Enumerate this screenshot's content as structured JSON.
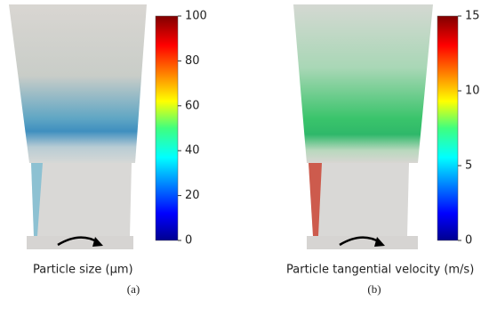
{
  "panels": [
    {
      "colorbar": {
        "ticks": [
          0,
          20,
          40,
          60,
          80,
          100
        ]
      },
      "title": "Particle size (μm)",
      "label": "(a)"
    },
    {
      "colorbar": {
        "ticks": [
          0,
          5,
          10,
          15
        ]
      },
      "title": "Particle tangential velocity (m/s)",
      "label": "(b)"
    }
  ]
}
